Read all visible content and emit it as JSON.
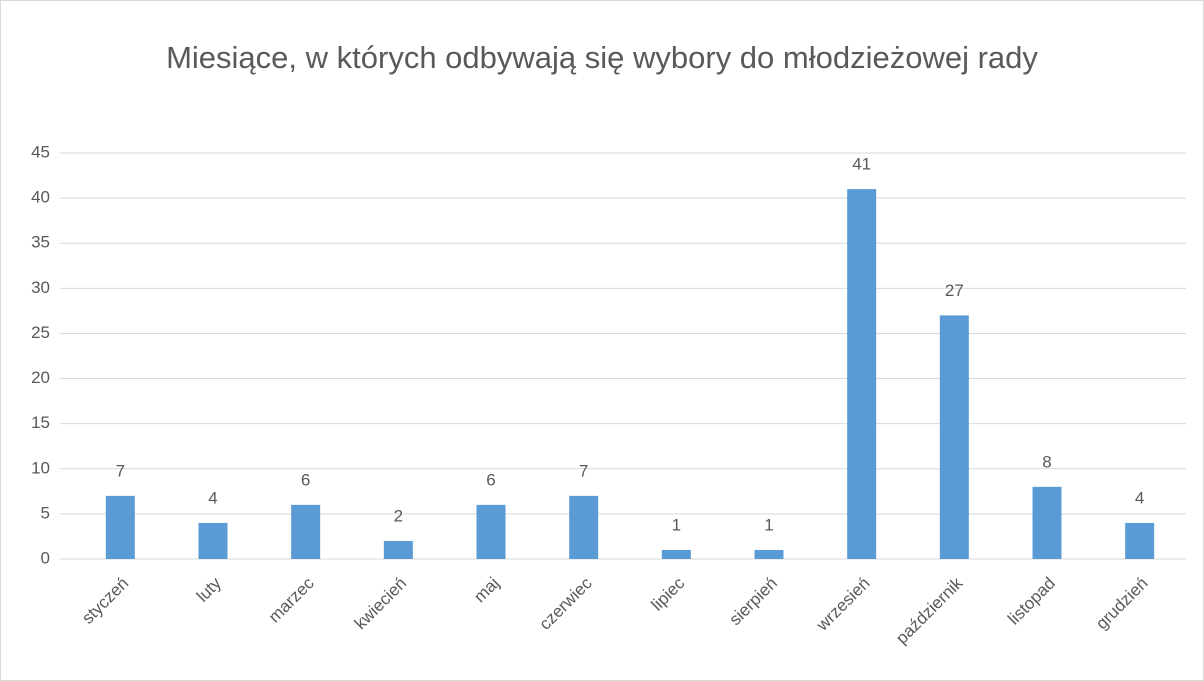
{
  "chart_data": {
    "type": "bar",
    "title": "Miesiące, w których odbywają się wybory do młodzieżowej rady",
    "categories": [
      "styczeń",
      "luty",
      "marzec",
      "kwiecień",
      "maj",
      "czerwiec",
      "lipiec",
      "sierpień",
      "wrzesień",
      "październik",
      "listopad",
      "grudzień"
    ],
    "values": [
      7,
      4,
      6,
      2,
      6,
      7,
      1,
      1,
      41,
      27,
      8,
      4
    ],
    "color": "#5b9bd5",
    "ylim": [
      0,
      45
    ],
    "yticks": [
      0,
      5,
      10,
      15,
      20,
      25,
      30,
      35,
      40,
      45
    ],
    "grid": true
  }
}
